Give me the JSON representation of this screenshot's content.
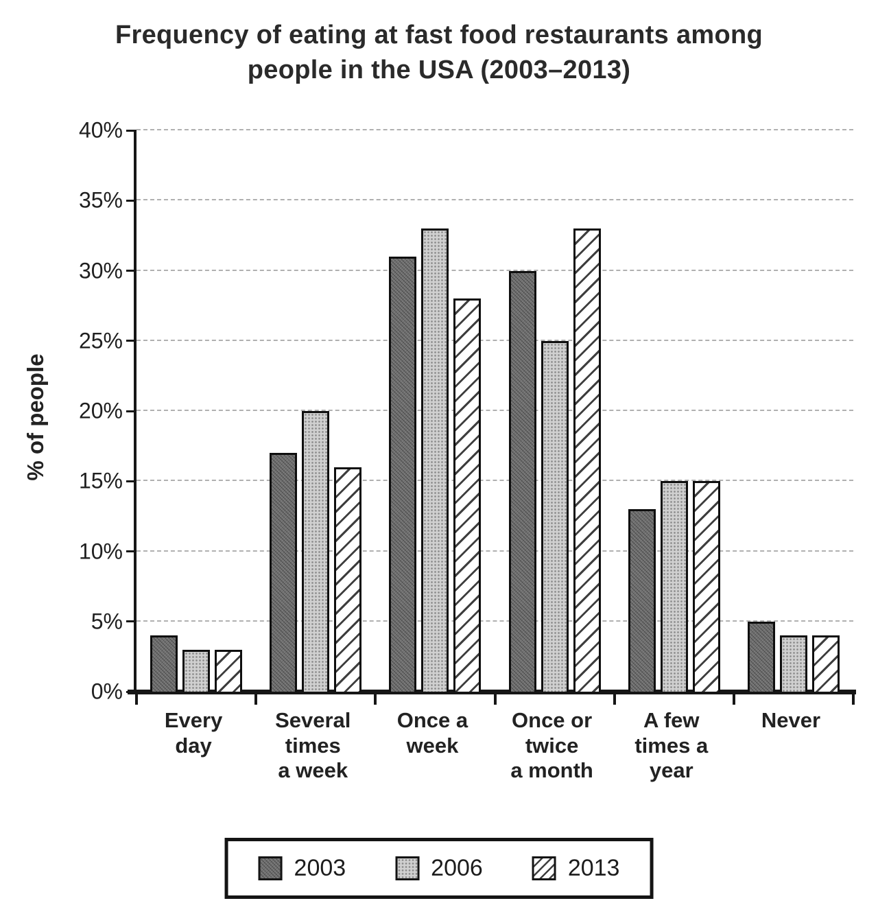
{
  "title": "Frequency of eating at fast food restaurants among\npeople in the USA (2003–2013)",
  "chart_data": {
    "type": "bar",
    "title": "Frequency of eating at fast food restaurants among people in the USA (2003–2013)",
    "ylabel": "% of people",
    "xlabel": "",
    "ylim": [
      0,
      40
    ],
    "ytick_step": 5,
    "ytick_suffix": "%",
    "grid": "horizontal-dashed",
    "legend_position": "bottom",
    "categories": [
      "Every\nday",
      "Several\ntimes\na week",
      "Once a\nweek",
      "Once or\ntwice\na month",
      "A few\ntimes a\nyear",
      "Never"
    ],
    "series": [
      {
        "name": "2003",
        "pattern": "dark-gray-texture",
        "color": "#6e6e6e",
        "values": [
          4,
          17,
          31,
          30,
          13,
          5
        ]
      },
      {
        "name": "2006",
        "pattern": "light-gray-speckle",
        "color": "#d0d0d0",
        "values": [
          3,
          20,
          33,
          25,
          15,
          4
        ]
      },
      {
        "name": "2013",
        "pattern": "white-diagonal-hatch",
        "color": "#ffffff",
        "values": [
          3,
          16,
          28,
          33,
          15,
          4
        ]
      }
    ]
  },
  "colors": {
    "axis": "#161616",
    "grid": "#8f8f8f",
    "text": "#1c1c1c",
    "hatch_line": "#3e3e3e",
    "background": "#ffffff"
  }
}
